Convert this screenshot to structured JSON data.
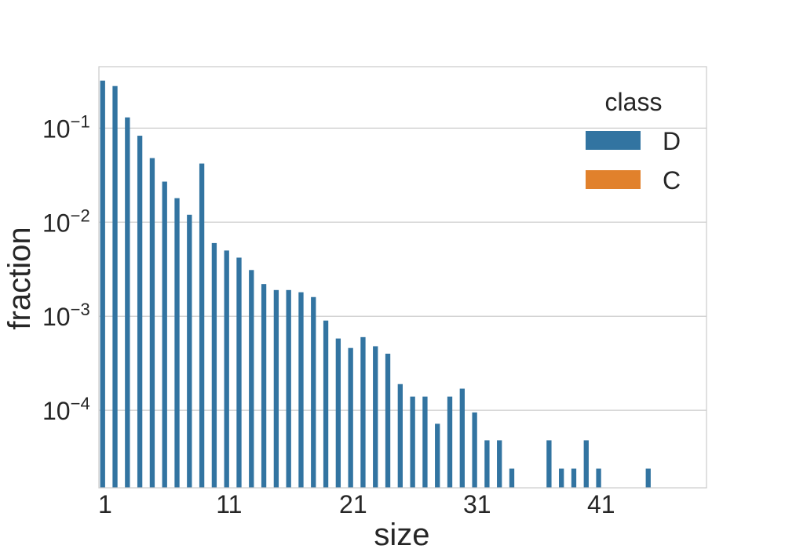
{
  "chart_data": {
    "type": "bar",
    "xlabel": "size",
    "ylabel": "fraction",
    "yscale": "log",
    "ylim": [
      1.5e-05,
      0.45
    ],
    "xlim": [
      0.5,
      49.5
    ],
    "grid": "y",
    "legend": {
      "title": "class",
      "placement": "top-right",
      "entries": [
        {
          "label": "D",
          "color": "#3274a1"
        },
        {
          "label": "C",
          "color": "#e1812c"
        }
      ]
    },
    "x_ticks": [
      1,
      11,
      21,
      31,
      41
    ],
    "y_ticks": [
      {
        "value": 0.1,
        "base": "10",
        "exp": "−1"
      },
      {
        "value": 0.01,
        "base": "10",
        "exp": "−2"
      },
      {
        "value": 0.001,
        "base": "10",
        "exp": "−3"
      },
      {
        "value": 0.0001,
        "base": "10",
        "exp": "−4"
      }
    ],
    "series": [
      {
        "name": "D",
        "color": "#3274a1",
        "x": [
          1,
          2,
          3,
          4,
          5,
          6,
          7,
          8,
          9,
          10,
          11,
          12,
          13,
          14,
          15,
          16,
          17,
          18,
          19,
          20,
          21,
          22,
          23,
          24,
          25,
          26,
          27,
          28,
          29,
          30,
          31,
          32,
          33,
          34,
          37,
          38,
          39,
          40,
          41,
          45
        ],
        "values": [
          0.32,
          0.28,
          0.13,
          0.083,
          0.048,
          0.027,
          0.018,
          0.012,
          0.042,
          0.006,
          0.005,
          0.0042,
          0.0031,
          0.0022,
          0.0019,
          0.0019,
          0.0018,
          0.0016,
          0.0009,
          0.00058,
          0.00046,
          0.0006,
          0.00048,
          0.0004,
          0.00019,
          0.00014,
          0.00014,
          7.2e-05,
          0.00014,
          0.00017,
          9.5e-05,
          4.8e-05,
          4.8e-05,
          2.4e-05,
          4.8e-05,
          2.4e-05,
          2.4e-05,
          4.8e-05,
          2.4e-05,
          2.4e-05
        ]
      },
      {
        "name": "C",
        "color": "#e1812c",
        "x": [],
        "values": []
      }
    ]
  }
}
